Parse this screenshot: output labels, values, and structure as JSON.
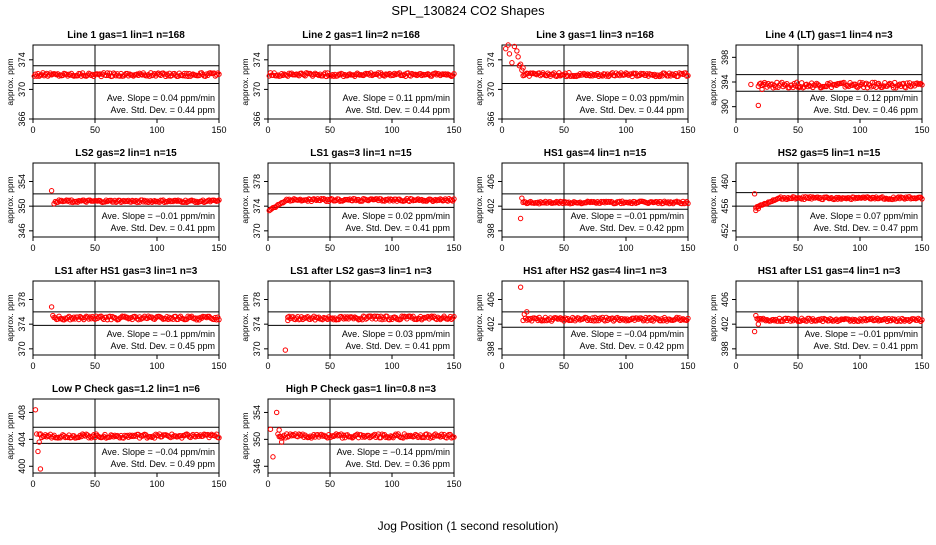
{
  "figure": {
    "title": "SPL_130824  CO2 Shapes",
    "xlabel": "Jog Position (1 second resolution)"
  },
  "chart_data": [
    {
      "type": "scatter",
      "title": "Line 1 gas=1 lin=1 n=168",
      "ylabel": "approx. ppm",
      "xlim": [
        0,
        150
      ],
      "ylim": [
        366,
        376
      ],
      "yticks": [
        366,
        370,
        374
      ],
      "xticks": [
        0,
        50,
        100,
        150
      ],
      "hlines": [
        370.8,
        373.2
      ],
      "vline": 50,
      "baseline": 372,
      "noise": 0.25,
      "x_start": 1,
      "outliers": [],
      "slope_label": "Ave. Slope =  0.04  ppm/min",
      "std_label": "Ave. Std. Dev. =  0.44  ppm"
    },
    {
      "type": "scatter",
      "title": "Line 2 gas=1 lin=2 n=168",
      "ylabel": "approx. ppm",
      "xlim": [
        0,
        150
      ],
      "ylim": [
        366,
        376
      ],
      "yticks": [
        366,
        370,
        374
      ],
      "xticks": [
        0,
        50,
        100,
        150
      ],
      "hlines": [
        370.8,
        373.2
      ],
      "vline": 50,
      "baseline": 372,
      "noise": 0.25,
      "x_start": 1,
      "outliers": [],
      "slope_label": "Ave. Slope =  0.11  ppm/min",
      "std_label": "Ave. Std. Dev. =  0.44  ppm"
    },
    {
      "type": "scatter",
      "title": "Line 3 gas=1 lin=3 n=168",
      "ylabel": "approx. ppm",
      "xlim": [
        0,
        150
      ],
      "ylim": [
        366,
        376
      ],
      "yticks": [
        366,
        370,
        374
      ],
      "xticks": [
        0,
        50,
        100,
        150
      ],
      "hlines": [
        370.8,
        373.2
      ],
      "vline": 50,
      "baseline": 372,
      "noise": 0.25,
      "x_start": 17,
      "outliers": [
        [
          3,
          375.5
        ],
        [
          6,
          374.8
        ],
        [
          8,
          373.6
        ],
        [
          10,
          375.8
        ],
        [
          12,
          375.2
        ],
        [
          13,
          374.4
        ],
        [
          14,
          373.2
        ],
        [
          16,
          372.6
        ],
        [
          17,
          372.9
        ],
        [
          15,
          373.4
        ],
        [
          5,
          376
        ]
      ],
      "slope_label": "Ave. Slope =  0.03  ppm/min",
      "std_label": "Ave. Std. Dev. =  0.44  ppm"
    },
    {
      "type": "scatter",
      "title": "Line 4 (LT) gas=1 lin=4 n=3",
      "ylabel": "approx. ppm",
      "xlim": [
        0,
        150
      ],
      "ylim": [
        388,
        400
      ],
      "yticks": [
        390,
        394,
        398
      ],
      "xticks": [
        0,
        50,
        100,
        150
      ],
      "hlines": [
        392.5,
        395.2
      ],
      "vline": 50,
      "baseline": 393.5,
      "noise": 0.45,
      "x_start": 18,
      "outliers": [
        [
          12,
          393.6
        ],
        [
          18,
          390.2
        ],
        [
          21,
          392.8
        ]
      ],
      "slope_label": "Ave. Slope =  0.12  ppm/min",
      "std_label": "Ave. Std. Dev. =  0.46  ppm"
    },
    {
      "type": "scatter",
      "title": "LS2 gas=2 lin=1 n=15",
      "ylabel": "approx. ppm",
      "xlim": [
        0,
        150
      ],
      "ylim": [
        345,
        357
      ],
      "yticks": [
        346,
        350,
        354
      ],
      "xticks": [
        0,
        50,
        100,
        150
      ],
      "hlines": [
        350,
        352
      ],
      "vline": 50,
      "baseline": 350.8,
      "noise": 0.2,
      "x_start": 18,
      "outliers": [
        [
          15,
          352.5
        ],
        [
          17,
          350.4
        ]
      ],
      "slope_label": "Ave. Slope = −0.01  ppm/min",
      "std_label": "Ave. Std. Dev. =  0.41  ppm"
    },
    {
      "type": "scatter",
      "title": "LS1 gas=3 lin=1 n=15",
      "ylabel": "approx. ppm",
      "xlim": [
        0,
        150
      ],
      "ylim": [
        369,
        381
      ],
      "yticks": [
        370,
        374,
        378
      ],
      "xticks": [
        0,
        50,
        100,
        150
      ],
      "hlines": [
        373.8,
        376
      ],
      "vline": 50,
      "baseline": 375,
      "noise": 0.22,
      "x_start": 1,
      "outliers": [],
      "ramp": {
        "x_end": 15,
        "y_start": 373.3
      },
      "slope_label": "Ave. Slope =  0.02  ppm/min",
      "std_label": "Ave. Std. Dev. =  0.41  ppm"
    },
    {
      "type": "scatter",
      "title": "HS1 gas=4 lin=1 n=15",
      "ylabel": "approx. ppm",
      "xlim": [
        0,
        150
      ],
      "ylim": [
        397,
        409
      ],
      "yticks": [
        398,
        402,
        406
      ],
      "xticks": [
        0,
        50,
        100,
        150
      ],
      "hlines": [
        401.5,
        404
      ],
      "vline": 50,
      "baseline": 402.6,
      "noise": 0.2,
      "x_start": 17,
      "outliers": [
        [
          15,
          400
        ],
        [
          16,
          403.3
        ]
      ],
      "slope_label": "Ave. Slope = −0.01  ppm/min",
      "std_label": "Ave. Std. Dev. =  0.42  ppm"
    },
    {
      "type": "scatter",
      "title": "HS2 gas=5 lin=1 n=15",
      "ylabel": "approx. ppm",
      "xlim": [
        0,
        150
      ],
      "ylim": [
        451,
        463
      ],
      "yticks": [
        452,
        456,
        460
      ],
      "xticks": [
        0,
        50,
        100,
        150
      ],
      "hlines": [
        456,
        458.2
      ],
      "vline": 50,
      "baseline": 457.3,
      "noise": 0.22,
      "x_start": 16,
      "outliers": [
        [
          15,
          458
        ],
        [
          16,
          455.3
        ],
        [
          18,
          455.6
        ]
      ],
      "ramp": {
        "x_end": 35,
        "y_start": 455.8
      },
      "slope_label": "Ave. Slope =  0.07  ppm/min",
      "std_label": "Ave. Std. Dev. =  0.47  ppm"
    },
    {
      "type": "scatter",
      "title": "LS1 after HS1 gas=3 lin=1 n=3",
      "ylabel": "approx. ppm",
      "xlim": [
        0,
        150
      ],
      "ylim": [
        369,
        381
      ],
      "yticks": [
        370,
        374,
        378
      ],
      "xticks": [
        0,
        50,
        100,
        150
      ],
      "hlines": [
        373.8,
        376
      ],
      "vline": 50,
      "baseline": 375,
      "noise": 0.3,
      "x_start": 17,
      "outliers": [
        [
          15,
          376.8
        ],
        [
          16,
          375.4
        ]
      ],
      "slope_label": "Ave. Slope =  −0.1  ppm/min",
      "std_label": "Ave. Std. Dev. =  0.45  ppm"
    },
    {
      "type": "scatter",
      "title": "LS1 after LS2 gas=3 lin=1 n=3",
      "ylabel": "approx. ppm",
      "xlim": [
        0,
        150
      ],
      "ylim": [
        369,
        381
      ],
      "yticks": [
        370,
        374,
        378
      ],
      "xticks": [
        0,
        50,
        100,
        150
      ],
      "hlines": [
        373.8,
        376
      ],
      "vline": 50,
      "baseline": 375,
      "noise": 0.3,
      "x_start": 16,
      "outliers": [
        [
          14,
          369.8
        ],
        [
          16,
          374.6
        ]
      ],
      "slope_label": "Ave. Slope =  0.03  ppm/min",
      "std_label": "Ave. Std. Dev. =  0.41  ppm"
    },
    {
      "type": "scatter",
      "title": "HS1 after HS2 gas=4 lin=1 n=3",
      "ylabel": "approx. ppm",
      "xlim": [
        0,
        150
      ],
      "ylim": [
        397,
        409
      ],
      "yticks": [
        398,
        402,
        406
      ],
      "xticks": [
        0,
        50,
        100,
        150
      ],
      "hlines": [
        401.5,
        404
      ],
      "vline": 50,
      "baseline": 402.8,
      "noise": 0.3,
      "x_start": 19,
      "outliers": [
        [
          15,
          408
        ],
        [
          17,
          402.6
        ],
        [
          18,
          403.6
        ],
        [
          20,
          404
        ]
      ],
      "slope_label": "Ave. Slope = −0.04  ppm/min",
      "std_label": "Ave. Std. Dev. =  0.42  ppm"
    },
    {
      "type": "scatter",
      "title": "HS1 after LS1 gas=4 lin=1 n=3",
      "ylabel": "approx. ppm",
      "xlim": [
        0,
        150
      ],
      "ylim": [
        397,
        409
      ],
      "yticks": [
        398,
        402,
        406
      ],
      "xticks": [
        0,
        50,
        100,
        150
      ],
      "hlines": [
        401.5,
        404
      ],
      "vline": 50,
      "baseline": 402.7,
      "noise": 0.25,
      "x_start": 17,
      "outliers": [
        [
          15,
          400.8
        ],
        [
          16,
          403.4
        ],
        [
          18,
          402
        ]
      ],
      "slope_label": "Ave. Slope = −0.01  ppm/min",
      "std_label": "Ave. Std. Dev. =  0.41  ppm"
    },
    {
      "type": "scatter",
      "title": "Low P Check gas=1.2 lin=1 n=6",
      "ylabel": "approx. ppm",
      "xlim": [
        0,
        150
      ],
      "ylim": [
        399,
        410
      ],
      "yticks": [
        400,
        404,
        408
      ],
      "xticks": [
        0,
        50,
        100,
        150
      ],
      "hlines": [
        403.4,
        405.8
      ],
      "vline": 50,
      "baseline": 404.5,
      "noise": 0.3,
      "x_start": 5,
      "outliers": [
        [
          2,
          408.4
        ],
        [
          3,
          404.8
        ],
        [
          4,
          402.2
        ],
        [
          5,
          403.6
        ],
        [
          6,
          399.6
        ]
      ],
      "slope_label": "Ave. Slope = −0.04  ppm/min",
      "std_label": "Ave. Std. Dev. =  0.49  ppm"
    },
    {
      "type": "scatter",
      "title": "High P Check gas=1 lin=0.8 n=3",
      "ylabel": "approx. ppm",
      "xlim": [
        0,
        150
      ],
      "ylim": [
        345,
        356
      ],
      "yticks": [
        346,
        350,
        354
      ],
      "xticks": [
        0,
        50,
        100,
        150
      ],
      "hlines": [
        349.3,
        351.8
      ],
      "vline": 50,
      "baseline": 350.5,
      "noise": 0.3,
      "x_start": 8,
      "outliers": [
        [
          2,
          351.5
        ],
        [
          4,
          347.4
        ],
        [
          7,
          354
        ],
        [
          9,
          351.4
        ],
        [
          11,
          349.6
        ]
      ],
      "slope_label": "Ave. Slope = −0.14  ppm/min",
      "std_label": "Ave. Std. Dev. =  0.36  ppm"
    }
  ]
}
